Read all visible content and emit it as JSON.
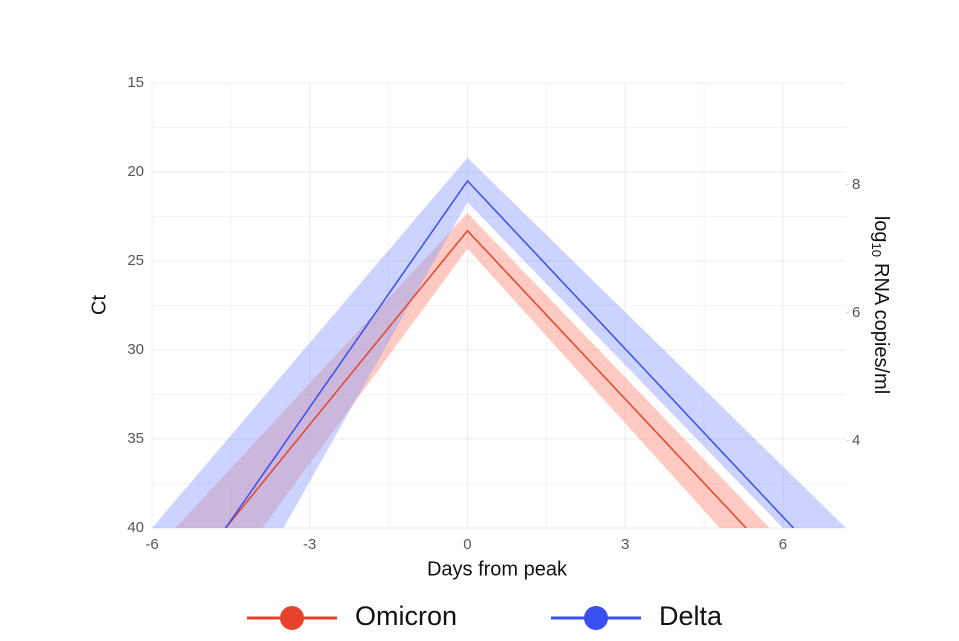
{
  "chart_data": {
    "type": "line",
    "x_label": "Days from peak",
    "y_label": "Ct",
    "y2_label": {
      "base": "log",
      "sub": "10",
      "rest": "RNA copies/ml"
    },
    "xlim": [
      -6,
      7.2
    ],
    "xticks": [
      -6,
      -3,
      0,
      3,
      6
    ],
    "xminor": [
      -4.5,
      -1.5,
      1.5,
      4.5
    ],
    "ylim": [
      40,
      15
    ],
    "yticks": [
      15,
      20,
      25,
      30,
      35,
      40
    ],
    "yminor": [
      17.5,
      22.5,
      27.5,
      32.5,
      37.5
    ],
    "y2lim": [
      2.64,
      9.59
    ],
    "y2ticks": [
      4,
      6,
      8
    ],
    "grid": true,
    "legend": "bottom",
    "series": [
      {
        "name": "Omicron",
        "color": "#e8432d",
        "band_color": "#fd8a78",
        "x": [
          -4.6,
          0,
          5.3
        ],
        "values": [
          40,
          23.3,
          40
        ],
        "band_outer_x": [
          -5.55,
          0,
          5.75
        ],
        "band_outer": [
          40,
          22.3,
          40
        ],
        "band_inner_x": [
          -3.9,
          0,
          4.8
        ],
        "band_inner": [
          40,
          24.3,
          40
        ]
      },
      {
        "name": "Delta",
        "color": "#3a4ff0",
        "band_color": "#8f9dfd",
        "x": [
          -4.6,
          0,
          6.2
        ],
        "values": [
          40,
          20.5,
          40
        ],
        "band_outer_x": [
          -6,
          0,
          7.2
        ],
        "band_outer": [
          40,
          19.2,
          40
        ],
        "band_inner_x": [
          -3.5,
          0,
          6.0
        ],
        "band_inner": [
          40,
          21.7,
          40
        ]
      }
    ]
  }
}
